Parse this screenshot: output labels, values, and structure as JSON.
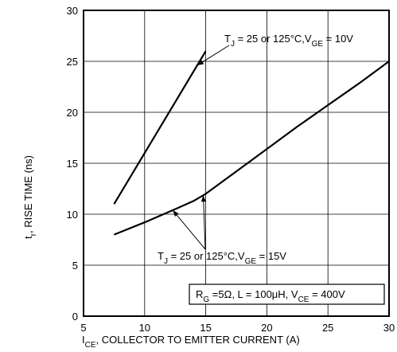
{
  "chart_data": {
    "type": "line",
    "title": "",
    "xlabel": {
      "pre": "I",
      "sub": "CE",
      "post": ", COLLECTOR TO EMITTER CURRENT (A)"
    },
    "ylabel": {
      "pre": "t",
      "sub": "r",
      "post": ", RISE TIME (ns)"
    },
    "xlim": [
      5,
      30
    ],
    "ylim": [
      0,
      30
    ],
    "xticks": [
      5,
      10,
      15,
      20,
      25,
      30
    ],
    "yticks": [
      0,
      5,
      10,
      15,
      20,
      25,
      30
    ],
    "grid": true,
    "series": [
      {
        "name": "T_J = 25 or 125°C, V_GE = 10V",
        "x": [
          7.5,
          15
        ],
        "y": [
          11,
          26
        ]
      },
      {
        "name": "T_J = 25 or 125°C, V_GE = 15V",
        "x": [
          7.5,
          10,
          12.5,
          14,
          15,
          17.5,
          20,
          22.5,
          25,
          27.5,
          30
        ],
        "y": [
          8,
          9.2,
          10.5,
          11.3,
          12,
          14.2,
          16.4,
          18.6,
          20.7,
          22.8,
          25
        ]
      }
    ],
    "annotations": [
      {
        "id": "vge10",
        "parts": [
          "T",
          "J",
          " = 25 or 125°C,V",
          "GE",
          " = 10V"
        ]
      },
      {
        "id": "vge15",
        "parts": [
          "T",
          "J",
          " = 25 or 125°C,V",
          "GE",
          " = 15V"
        ]
      }
    ],
    "conditions": {
      "parts": [
        "R",
        "G",
        " =5Ω, L = 100μH, V",
        "CE",
        " = 400V"
      ]
    }
  }
}
